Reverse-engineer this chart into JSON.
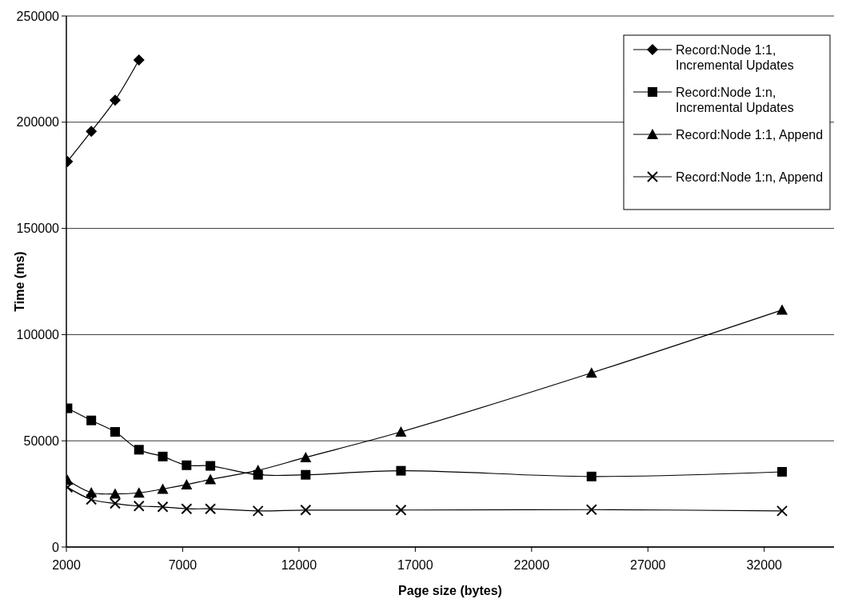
{
  "chart_data": {
    "type": "line",
    "xlabel": "Page size (bytes)",
    "ylabel": "Time (ms)",
    "x": [
      2048,
      3072,
      4096,
      5120,
      6144,
      7168,
      8192,
      10240,
      12288,
      16384,
      24576,
      32768
    ],
    "xlim": [
      2000,
      35000
    ],
    "xticks": [
      2000,
      7000,
      12000,
      17000,
      22000,
      27000,
      32000
    ],
    "ylim": [
      0,
      250000
    ],
    "yticks": [
      0,
      50000,
      100000,
      150000,
      200000,
      250000
    ],
    "grid": "y",
    "legend": "top right",
    "series": [
      {
        "name": "Record:Node 1:1, Incremental Updates",
        "color": "#000000",
        "marker": "diamond",
        "values": [
          181500,
          195700,
          210400,
          229300,
          null,
          null,
          null,
          null,
          null,
          null,
          null,
          null
        ]
      },
      {
        "name": "Record:Node 1:n, Incremental Updates",
        "color": "#000000",
        "marker": "square",
        "values": [
          65300,
          59600,
          54200,
          45800,
          42600,
          38500,
          38200,
          34000,
          34000,
          35900,
          33200,
          35400
        ]
      },
      {
        "name": "Record:Node 1:1, Append",
        "color": "#000000",
        "marker": "triangle",
        "values": [
          31500,
          25600,
          25000,
          25500,
          27300,
          29400,
          31800,
          36100,
          42200,
          54200,
          82000,
          111600
        ]
      },
      {
        "name": "Record:Node 1:n, Append",
        "color": "#000000",
        "marker": "cross",
        "values": [
          28100,
          22400,
          20500,
          19300,
          18900,
          18000,
          18000,
          17000,
          17400,
          17400,
          17600,
          17000
        ]
      }
    ]
  }
}
